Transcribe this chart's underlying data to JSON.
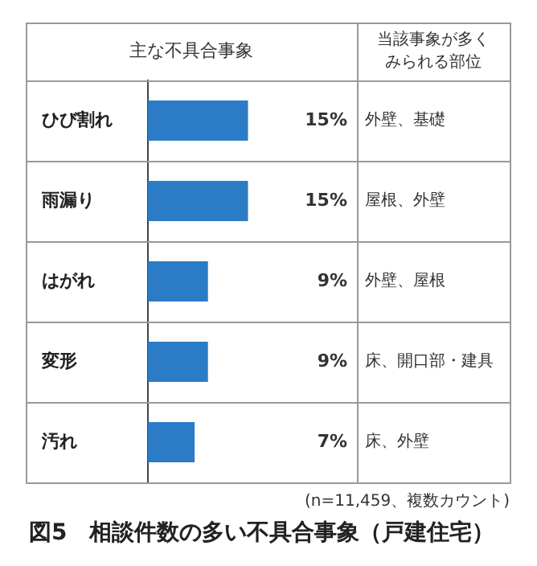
{
  "chart_data": {
    "type": "bar",
    "orientation": "horizontal",
    "title": "図5　相談件数の多い不具合事象（戸建住宅）",
    "categories": [
      "ひび割れ",
      "雨漏り",
      "はがれ",
      "変形",
      "汚れ"
    ],
    "values": [
      15,
      15,
      9,
      9,
      7
    ],
    "color": "#2b7bc6",
    "value_labels": [
      "15%",
      "15%",
      "9%",
      "9%",
      "7%"
    ],
    "annotations": [
      "主な不具合事象",
      "当該事象が多くみられる部位",
      "(n=11,459、複数カウント)",
      "外壁、基礎",
      "屋根、外壁",
      "外壁、屋根",
      "床、開口部・建具",
      "床、外壁"
    ],
    "legend": false
  }
}
